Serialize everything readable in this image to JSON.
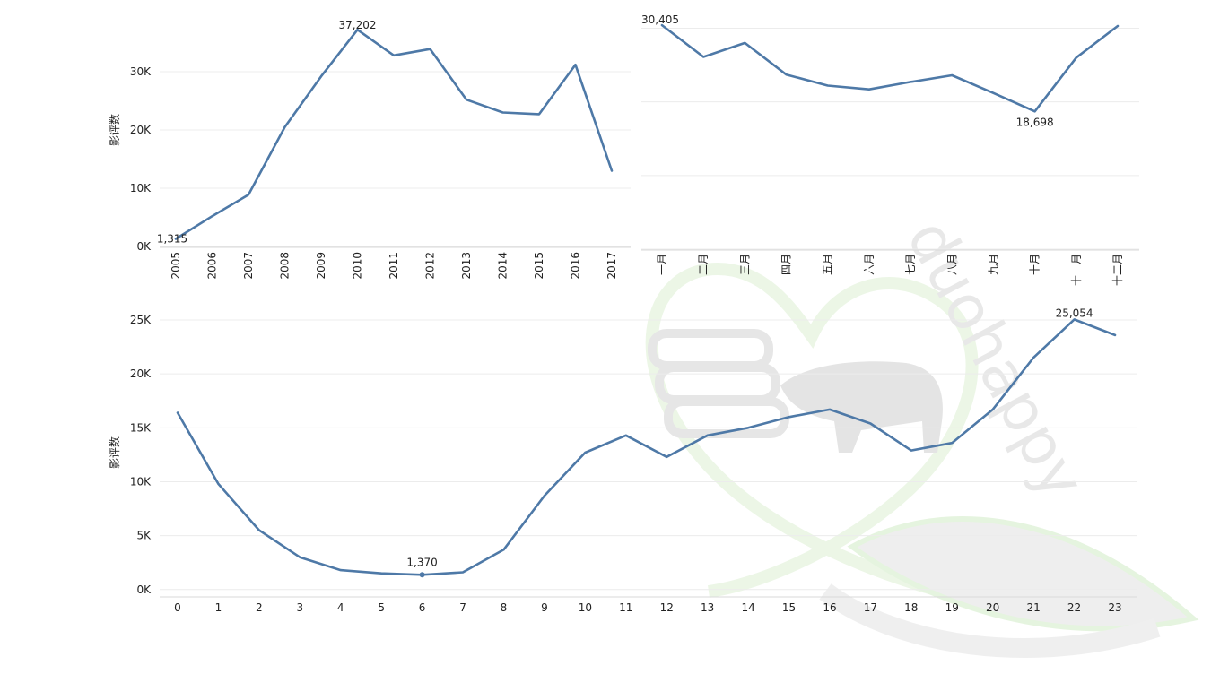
{
  "colors": {
    "series": "#4e79a7",
    "grid": "#ececec",
    "text": "#222222",
    "watermark": "#e8f3e2"
  },
  "watermark": {
    "text": "duohappy"
  },
  "chart_data": [
    {
      "id": "yearly",
      "type": "line",
      "ylabel": "影评数",
      "x": [
        "2005",
        "2006",
        "2007",
        "2008",
        "2009",
        "2010",
        "2011",
        "2012",
        "2013",
        "2014",
        "2015",
        "2016",
        "2017"
      ],
      "values": [
        1315,
        5200,
        8900,
        20500,
        29200,
        37202,
        32800,
        33900,
        25200,
        23000,
        22700,
        31200,
        13000
      ],
      "ylim": [
        0,
        40000
      ],
      "yticks": [
        0,
        10000,
        20000,
        30000
      ],
      "ytick_labels": [
        "0K",
        "10K",
        "20K",
        "30K"
      ],
      "labeled_points": [
        {
          "index": 0,
          "text": "1,315"
        },
        {
          "index": 5,
          "text": "37,202"
        }
      ],
      "grid": true
    },
    {
      "id": "monthly",
      "type": "line",
      "ylabel": "",
      "x": [
        "一月",
        "二月",
        "三月",
        "四月",
        "五月",
        "六月",
        "七月",
        "八月",
        "九月",
        "十月",
        "十一月",
        "十二月"
      ],
      "values": [
        30405,
        26100,
        28000,
        23700,
        22200,
        21700,
        22700,
        23600,
        21200,
        18698,
        26000,
        30300
      ],
      "ylim": [
        0,
        32000
      ],
      "yticks": [
        0,
        10000,
        20000,
        30000
      ],
      "ytick_labels": [
        "",
        "",
        "",
        ""
      ],
      "labeled_points": [
        {
          "index": 0,
          "text": "30,405"
        },
        {
          "index": 9,
          "text": "18,698"
        }
      ],
      "grid": true
    },
    {
      "id": "hourly",
      "type": "line",
      "ylabel": "影评数",
      "x": [
        "0",
        "1",
        "2",
        "3",
        "4",
        "5",
        "6",
        "7",
        "8",
        "9",
        "10",
        "11",
        "12",
        "13",
        "14",
        "15",
        "16",
        "17",
        "18",
        "19",
        "20",
        "21",
        "22",
        "23"
      ],
      "values": [
        16400,
        9800,
        5500,
        3000,
        1800,
        1500,
        1370,
        1600,
        3700,
        8700,
        12700,
        14300,
        12300,
        14300,
        15000,
        16000,
        16700,
        15400,
        12900,
        13600,
        16700,
        21500,
        25054,
        23600
      ],
      "ylim": [
        -600,
        26000
      ],
      "yticks": [
        0,
        5000,
        10000,
        15000,
        20000,
        25000
      ],
      "ytick_labels": [
        "0K",
        "5K",
        "10K",
        "15K",
        "20K",
        "25K"
      ],
      "labeled_points": [
        {
          "index": 6,
          "text": "1,370",
          "marker": true
        },
        {
          "index": 22,
          "text": "25,054"
        }
      ],
      "grid": true
    }
  ]
}
